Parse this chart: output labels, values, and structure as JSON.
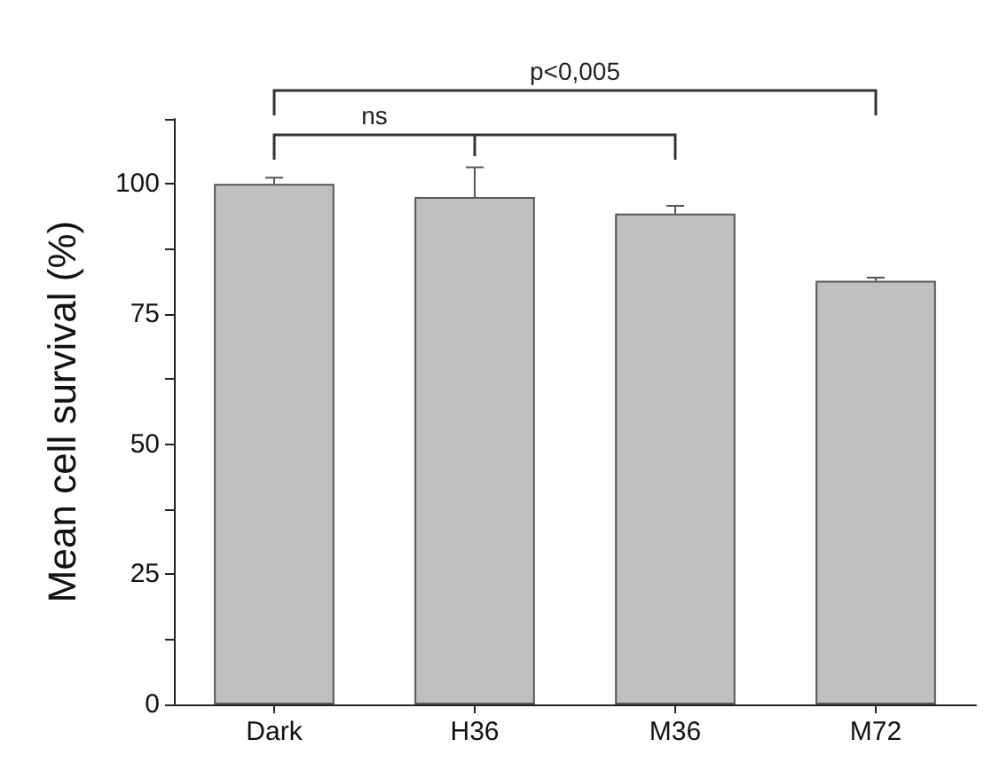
{
  "chart_data": {
    "type": "bar",
    "ylabel": "Mean cell survival (%)",
    "categories": [
      "Dark",
      "H36",
      "M36",
      "M72"
    ],
    "values": [
      100,
      97.5,
      94.3,
      81.4
    ],
    "errors": [
      [
        100,
        101.2
      ],
      [
        97.5,
        103.2
      ],
      [
        94.3,
        95.8
      ],
      [
        81.4,
        82
      ]
    ],
    "color": "#c0c0c0",
    "ylim": [
      0,
      112.5
    ],
    "yticks": [
      0,
      {
        "value": 12.5,
        "label": null
      },
      25,
      {
        "value": 37.5,
        "label": null
      },
      50,
      {
        "value": 62.5,
        "label": null
      },
      75,
      {
        "value": 87.5,
        "label": null
      },
      100,
      {
        "value": 112.5,
        "label": null
      }
    ],
    "grid": false,
    "annotations": [
      "ns",
      "p<0,005"
    ]
  }
}
